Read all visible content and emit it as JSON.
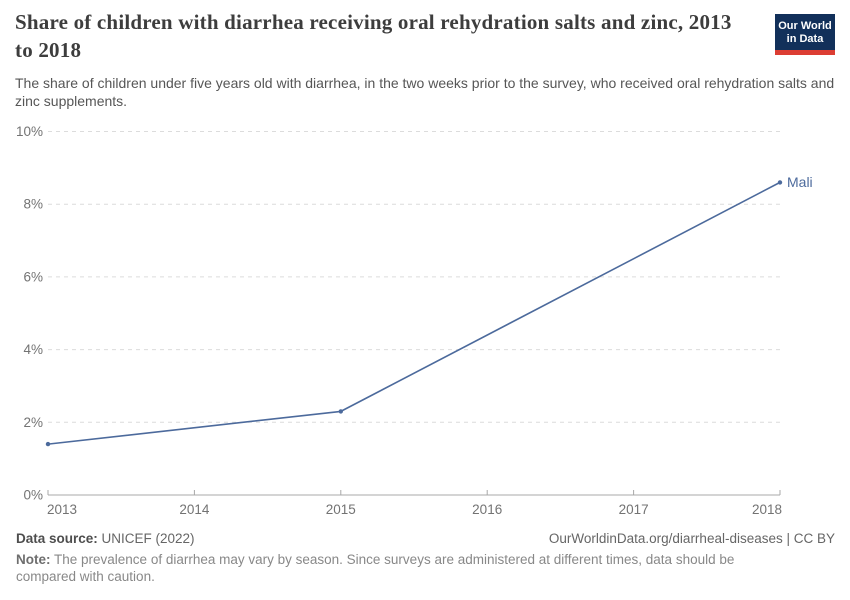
{
  "header": {
    "title": "Share of children with diarrhea receiving oral rehydration salts and zinc, 2013 to 2018",
    "subtitle": "The share of children under five years old with diarrhea, in the two weeks prior to the survey, who received oral rehydration salts and zinc supplements.",
    "logo": {
      "line1": "Our World",
      "line2": "in Data"
    }
  },
  "chart_data": {
    "type": "line",
    "title": "Share of children with diarrhea receiving oral rehydration salts and zinc, 2013 to 2018",
    "xlabel": "",
    "ylabel": "",
    "xlim": [
      2013,
      2018
    ],
    "ylim": [
      0,
      10
    ],
    "grid": "horizontal-dashed",
    "legend_position": "end-of-line-label",
    "xticks": [
      {
        "value": 2013,
        "label": "2013"
      },
      {
        "value": 2014,
        "label": "2014"
      },
      {
        "value": 2015,
        "label": "2015"
      },
      {
        "value": 2016,
        "label": "2016"
      },
      {
        "value": 2017,
        "label": "2017"
      },
      {
        "value": 2018,
        "label": "2018"
      }
    ],
    "yticks": [
      {
        "value": 0,
        "label": "0%"
      },
      {
        "value": 2,
        "label": "2%"
      },
      {
        "value": 4,
        "label": "4%"
      },
      {
        "value": 6,
        "label": "6%"
      },
      {
        "value": 8,
        "label": "8%"
      },
      {
        "value": 10,
        "label": "10%"
      }
    ],
    "series": [
      {
        "name": "Mali",
        "color": "#4C6A9C",
        "points": [
          {
            "x": 2013,
            "y": 1.4
          },
          {
            "x": 2015,
            "y": 2.3
          },
          {
            "x": 2018,
            "y": 8.6
          }
        ]
      }
    ]
  },
  "footer": {
    "source_label": "Data source:",
    "source_value": " UNICEF (2022)",
    "link": "OurWorldinData.org/diarrheal-diseases | CC BY",
    "note_label": "Note:",
    "note_text": " The prevalence of diarrhea may vary by season. Since surveys are administered at different times, data should be compared with caution."
  },
  "colors": {
    "line": "#4C6A9C",
    "grid": "#dcdcdc",
    "axis": "#a8a8a8",
    "tick_text": "#737373",
    "title_text": "#3d3d3d",
    "logo_bg": "#12305a",
    "logo_accent": "#dc3d33"
  }
}
